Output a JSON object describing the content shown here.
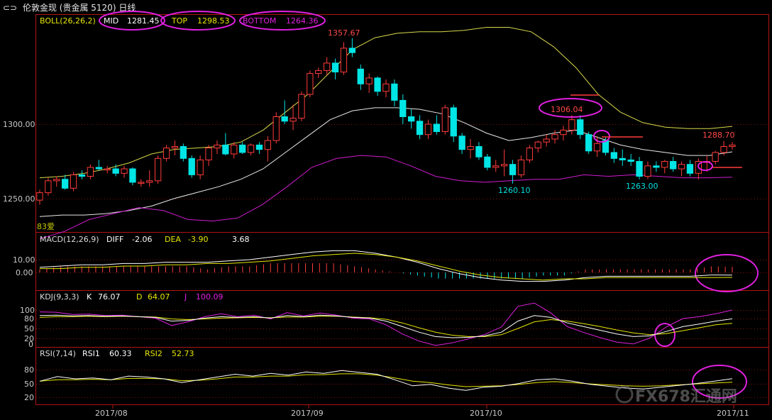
{
  "header": {
    "nav_glyph": "⊂⊃",
    "instrument": "伦敦金现",
    "instrument_group": "(贵金属 5120)",
    "period": "日线"
  },
  "colors": {
    "background": "#000000",
    "frame": "#b01414",
    "up_candle": "#ff3b3b",
    "down_candle": "#00e5e5",
    "boll_band": "#d8d84a",
    "boll_mid": "#e8e8e8",
    "boll_lower": "#d01cd0",
    "annotation_circle": "#e020e0",
    "macd_diff": "#ffffff",
    "macd_dea": "#e6e600",
    "kdj_k": "#ffffff",
    "kdj_d": "#e6e600",
    "kdj_j": "#e020e0",
    "rsi1": "#ffffff",
    "rsi2": "#e6e600"
  },
  "panels": {
    "boll": {
      "label": "BOLL(26,26,2)",
      "mid_label": "MID",
      "mid_value": "1281.45",
      "top_label": "TOP",
      "top_value": "1298.53",
      "bottom_label": "BOTTOM",
      "bottom_value": "1264.36",
      "y_ticks": [
        "1300.00",
        "1250.00"
      ],
      "corner_label": "83爱"
    },
    "macd": {
      "label": "MACD(12,26,9)",
      "diff_label": "DIFF",
      "diff_value": "-2.06",
      "dea_label": "DEA",
      "dea_value": "-3.90",
      "macd_value": "3.68",
      "y_ticks": [
        "10.00",
        "0.00"
      ]
    },
    "kdj": {
      "label": "KDJ(9,3,3)",
      "k_label": "K",
      "k_value": "76.07",
      "d_label": "D",
      "d_value": "64.07",
      "j_label": "J",
      "j_value": "100.09",
      "y_ticks": [
        "100",
        "80",
        "50",
        "20",
        "0"
      ]
    },
    "rsi": {
      "label": "RSI(7,14)",
      "rsi1_label": "RSI1",
      "rsi1_value": "60.33",
      "rsi2_label": "RSI2",
      "rsi2_value": "52.73",
      "y_ticks": [
        "80",
        "50",
        "20"
      ]
    }
  },
  "x_axis_labels": [
    "2017/08",
    "2017/09",
    "2017/10",
    "2017/11"
  ],
  "annotations": [
    "1357.67",
    "1306.04",
    "1288.70",
    "1260.10",
    "1263.00"
  ],
  "watermark": "FX678汇通网",
  "chart_data": {
    "type": "candlestick",
    "title": "伦敦金现 日线",
    "price_range": [
      1230,
      1375
    ],
    "candles": [
      {
        "o": 1249,
        "h": 1256,
        "l": 1246,
        "c": 1254
      },
      {
        "o": 1254,
        "h": 1264,
        "l": 1252,
        "c": 1262
      },
      {
        "o": 1262,
        "h": 1265,
        "l": 1258,
        "c": 1263
      },
      {
        "o": 1263,
        "h": 1266,
        "l": 1256,
        "c": 1257
      },
      {
        "o": 1257,
        "h": 1268,
        "l": 1255,
        "c": 1266
      },
      {
        "o": 1266,
        "h": 1269,
        "l": 1263,
        "c": 1265
      },
      {
        "o": 1265,
        "h": 1273,
        "l": 1263,
        "c": 1271
      },
      {
        "o": 1271,
        "h": 1276,
        "l": 1269,
        "c": 1270
      },
      {
        "o": 1270,
        "h": 1272,
        "l": 1267,
        "c": 1270
      },
      {
        "o": 1270,
        "h": 1273,
        "l": 1265,
        "c": 1267
      },
      {
        "o": 1267,
        "h": 1272,
        "l": 1264,
        "c": 1270
      },
      {
        "o": 1270,
        "h": 1271,
        "l": 1259,
        "c": 1261
      },
      {
        "o": 1261,
        "h": 1263,
        "l": 1258,
        "c": 1261
      },
      {
        "o": 1261,
        "h": 1269,
        "l": 1258,
        "c": 1262
      },
      {
        "o": 1262,
        "h": 1279,
        "l": 1260,
        "c": 1277
      },
      {
        "o": 1277,
        "h": 1286,
        "l": 1275,
        "c": 1284
      },
      {
        "o": 1284,
        "h": 1289,
        "l": 1279,
        "c": 1285
      },
      {
        "o": 1285,
        "h": 1287,
        "l": 1275,
        "c": 1277
      },
      {
        "o": 1277,
        "h": 1279,
        "l": 1264,
        "c": 1266
      },
      {
        "o": 1266,
        "h": 1279,
        "l": 1263,
        "c": 1276
      },
      {
        "o": 1276,
        "h": 1286,
        "l": 1272,
        "c": 1284
      },
      {
        "o": 1284,
        "h": 1289,
        "l": 1280,
        "c": 1286
      },
      {
        "o": 1286,
        "h": 1294,
        "l": 1279,
        "c": 1280
      },
      {
        "o": 1280,
        "h": 1288,
        "l": 1277,
        "c": 1286
      },
      {
        "o": 1286,
        "h": 1288,
        "l": 1280,
        "c": 1281
      },
      {
        "o": 1281,
        "h": 1287,
        "l": 1279,
        "c": 1286
      },
      {
        "o": 1286,
        "h": 1288,
        "l": 1280,
        "c": 1283
      },
      {
        "o": 1283,
        "h": 1292,
        "l": 1275,
        "c": 1289
      },
      {
        "o": 1289,
        "h": 1308,
        "l": 1287,
        "c": 1305
      },
      {
        "o": 1305,
        "h": 1316,
        "l": 1300,
        "c": 1302
      },
      {
        "o": 1302,
        "h": 1313,
        "l": 1296,
        "c": 1304
      },
      {
        "o": 1304,
        "h": 1322,
        "l": 1302,
        "c": 1320
      },
      {
        "o": 1320,
        "h": 1336,
        "l": 1318,
        "c": 1334
      },
      {
        "o": 1334,
        "h": 1338,
        "l": 1331,
        "c": 1336
      },
      {
        "o": 1336,
        "h": 1345,
        "l": 1333,
        "c": 1341
      },
      {
        "o": 1341,
        "h": 1344,
        "l": 1330,
        "c": 1335
      },
      {
        "o": 1335,
        "h": 1355,
        "l": 1333,
        "c": 1351
      },
      {
        "o": 1351,
        "h": 1357.67,
        "l": 1345,
        "c": 1348
      },
      {
        "o": 1337,
        "h": 1340,
        "l": 1323,
        "c": 1327
      },
      {
        "o": 1327,
        "h": 1334,
        "l": 1321,
        "c": 1331
      },
      {
        "o": 1331,
        "h": 1332,
        "l": 1319,
        "c": 1322
      },
      {
        "o": 1322,
        "h": 1330,
        "l": 1318,
        "c": 1327
      },
      {
        "o": 1327,
        "h": 1330,
        "l": 1312,
        "c": 1316
      },
      {
        "o": 1316,
        "h": 1320,
        "l": 1300,
        "c": 1305
      },
      {
        "o": 1305,
        "h": 1310,
        "l": 1297,
        "c": 1302
      },
      {
        "o": 1302,
        "h": 1306,
        "l": 1290,
        "c": 1293
      },
      {
        "o": 1293,
        "h": 1303,
        "l": 1290,
        "c": 1300
      },
      {
        "o": 1300,
        "h": 1306,
        "l": 1293,
        "c": 1295
      },
      {
        "o": 1295,
        "h": 1313,
        "l": 1293,
        "c": 1311
      },
      {
        "o": 1311,
        "h": 1313,
        "l": 1288,
        "c": 1292
      },
      {
        "o": 1292,
        "h": 1294,
        "l": 1280,
        "c": 1283
      },
      {
        "o": 1283,
        "h": 1290,
        "l": 1277,
        "c": 1285
      },
      {
        "o": 1285,
        "h": 1288,
        "l": 1276,
        "c": 1278
      },
      {
        "o": 1278,
        "h": 1280,
        "l": 1269,
        "c": 1271
      },
      {
        "o": 1271,
        "h": 1276,
        "l": 1268,
        "c": 1272
      },
      {
        "o": 1272,
        "h": 1283,
        "l": 1265,
        "c": 1273
      },
      {
        "o": 1273,
        "h": 1276,
        "l": 1260.1,
        "c": 1266
      },
      {
        "o": 1266,
        "h": 1279,
        "l": 1264,
        "c": 1276
      },
      {
        "o": 1276,
        "h": 1286,
        "l": 1274,
        "c": 1284
      },
      {
        "o": 1284,
        "h": 1289,
        "l": 1281,
        "c": 1288
      },
      {
        "o": 1288,
        "h": 1293,
        "l": 1285,
        "c": 1290
      },
      {
        "o": 1290,
        "h": 1296,
        "l": 1287,
        "c": 1293
      },
      {
        "o": 1293,
        "h": 1299,
        "l": 1289,
        "c": 1296
      },
      {
        "o": 1296,
        "h": 1306.04,
        "l": 1293,
        "c": 1303
      },
      {
        "o": 1303,
        "h": 1306,
        "l": 1290,
        "c": 1293
      },
      {
        "o": 1293,
        "h": 1295,
        "l": 1280,
        "c": 1282
      },
      {
        "o": 1282,
        "h": 1292,
        "l": 1278,
        "c": 1287
      },
      {
        "o": 1289,
        "h": 1291,
        "l": 1279,
        "c": 1281
      },
      {
        "o": 1281,
        "h": 1284,
        "l": 1274,
        "c": 1277
      },
      {
        "o": 1277,
        "h": 1283,
        "l": 1272,
        "c": 1276
      },
      {
        "o": 1276,
        "h": 1280,
        "l": 1272,
        "c": 1275
      },
      {
        "o": 1275,
        "h": 1278,
        "l": 1263,
        "c": 1265
      },
      {
        "o": 1265,
        "h": 1275,
        "l": 1263,
        "c": 1272
      },
      {
        "o": 1272,
        "h": 1275,
        "l": 1268,
        "c": 1271
      },
      {
        "o": 1271,
        "h": 1276,
        "l": 1267,
        "c": 1275
      },
      {
        "o": 1275,
        "h": 1278,
        "l": 1268,
        "c": 1270
      },
      {
        "o": 1270,
        "h": 1275,
        "l": 1265,
        "c": 1273
      },
      {
        "o": 1273,
        "h": 1276,
        "l": 1265,
        "c": 1267
      },
      {
        "o": 1267,
        "h": 1277,
        "l": 1263,
        "c": 1275
      },
      {
        "o": 1275,
        "h": 1279,
        "l": 1268,
        "c": 1275
      },
      {
        "o": 1275,
        "h": 1282,
        "l": 1273,
        "c": 1281
      },
      {
        "o": 1281,
        "h": 1288.7,
        "l": 1279,
        "c": 1285
      },
      {
        "o": 1285,
        "h": 1288,
        "l": 1283,
        "c": 1286
      }
    ],
    "boll_upper": [
      1264,
      1265,
      1267,
      1270,
      1274,
      1280,
      1283,
      1284,
      1285,
      1288,
      1296,
      1308,
      1320,
      1335,
      1350,
      1358,
      1361,
      1362,
      1362,
      1363,
      1365,
      1365,
      1362,
      1352,
      1338,
      1320,
      1308,
      1301,
      1298,
      1297,
      1297,
      1298.53
    ],
    "boll_mid": [
      1238,
      1239,
      1239,
      1240,
      1242,
      1245,
      1250,
      1254,
      1258,
      1263,
      1270,
      1281,
      1292,
      1303,
      1309,
      1311,
      1311,
      1310,
      1307,
      1301,
      1294,
      1289,
      1291,
      1294,
      1296,
      1291,
      1286,
      1283,
      1281,
      1279,
      1279,
      1281.45
    ],
    "boll_lower": [
      1223,
      1228,
      1236,
      1240,
      1244,
      1242,
      1236,
      1235,
      1237,
      1246,
      1258,
      1271,
      1277,
      1279,
      1278,
      1272,
      1265,
      1262,
      1261,
      1262,
      1263,
      1263,
      1266,
      1265,
      1266,
      1265,
      1264,
      1264,
      1264.36
    ],
    "macd": {
      "diff": [
        4,
        5,
        6,
        6,
        7,
        7,
        8,
        8,
        8,
        9,
        10,
        12,
        14,
        16,
        17,
        17,
        15,
        12,
        8,
        3,
        -1,
        -4,
        -6,
        -7,
        -7,
        -6,
        -4,
        -3,
        -3,
        -3,
        -3,
        -3,
        -2,
        -2.06
      ],
      "dea": [
        3,
        3,
        4,
        4,
        5,
        5,
        6,
        6,
        7,
        7,
        8,
        9,
        11,
        13,
        14,
        15,
        14,
        12,
        9,
        5,
        1,
        -2,
        -4,
        -5,
        -6,
        -5,
        -5,
        -4,
        -4,
        -4,
        -4,
        -4,
        -4,
        -3.9
      ],
      "hist_last": 3.68
    },
    "kdj": {
      "k": [
        85,
        86,
        84,
        85,
        83,
        84,
        82,
        80,
        70,
        72,
        78,
        82,
        80,
        82,
        78,
        85,
        82,
        86,
        84,
        80,
        78,
        70,
        55,
        40,
        28,
        25,
        26,
        30,
        40,
        70,
        85,
        80,
        65,
        55,
        45,
        35,
        28,
        30,
        42,
        55,
        62,
        70,
        76.07
      ],
      "d": [
        80,
        82,
        82,
        83,
        82,
        83,
        82,
        81,
        76,
        74,
        76,
        78,
        79,
        80,
        79,
        81,
        81,
        83,
        83,
        81,
        79,
        75,
        65,
        52,
        40,
        32,
        28,
        28,
        33,
        50,
        68,
        74,
        70,
        63,
        55,
        46,
        38,
        33,
        36,
        44,
        52,
        60,
        64.07
      ],
      "j": [
        95,
        94,
        88,
        89,
        85,
        86,
        82,
        78,
        58,
        68,
        82,
        90,
        82,
        86,
        76,
        93,
        84,
        92,
        86,
        78,
        76,
        60,
        35,
        16,
        4,
        11,
        22,
        34,
        54,
        110,
        119,
        92,
        55,
        39,
        25,
        13,
        8,
        24,
        54,
        77,
        82,
        90,
        100.09
      ]
    },
    "rsi": {
      "rsi1": [
        55,
        65,
        60,
        62,
        58,
        66,
        64,
        60,
        52,
        58,
        64,
        70,
        66,
        72,
        68,
        75,
        72,
        78,
        74,
        70,
        58,
        45,
        48,
        40,
        35,
        42,
        44,
        50,
        58,
        60,
        55,
        48,
        44,
        40,
        38,
        42,
        46,
        50,
        55,
        60.33
      ],
      "rsi2": [
        55,
        58,
        58,
        59,
        58,
        61,
        61,
        60,
        56,
        57,
        60,
        64,
        64,
        66,
        66,
        69,
        69,
        71,
        71,
        68,
        62,
        55,
        52,
        47,
        43,
        44,
        45,
        48,
        52,
        54,
        52,
        49,
        47,
        45,
        44,
        45,
        47,
        49,
        51,
        52.73
      ]
    }
  }
}
